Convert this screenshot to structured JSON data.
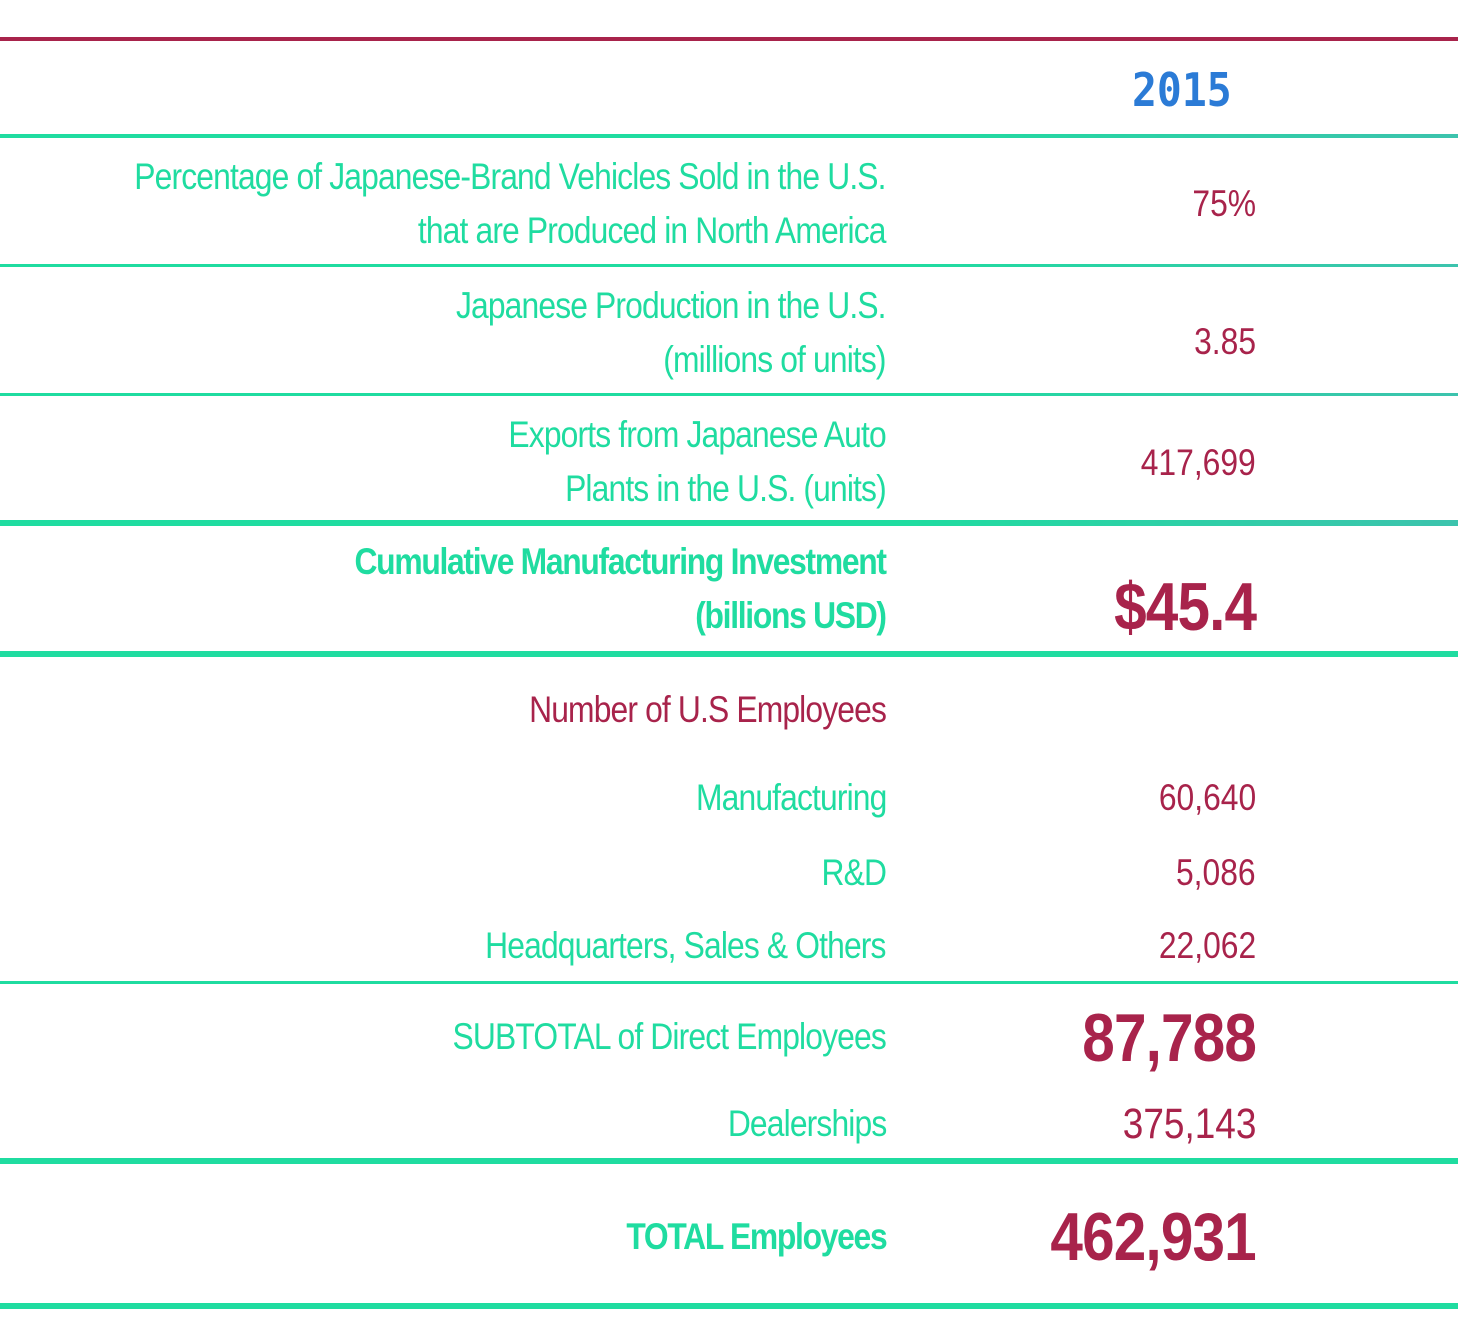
{
  "colors": {
    "label": "#1fdca0",
    "value": "#a8234b",
    "year": "#2b7bd6",
    "top_rule": "#a8234b",
    "rule": "#1fdca0",
    "rule_right": "#3cc3ad"
  },
  "header": {
    "year": "2015"
  },
  "rows": {
    "pct_japanese": {
      "label_line1": "Percentage of Japanese-Brand Vehicles Sold in the U.S.",
      "label_line2": "that are Produced in North America",
      "value": "75%"
    },
    "production": {
      "label_line1": "Japanese Production in the U.S.",
      "label_line2": "(millions of units)",
      "value": "3.85"
    },
    "exports": {
      "label_line1": "Exports from Japanese Auto",
      "label_line2": "Plants in the U.S. (units)",
      "value": "417,699"
    },
    "investment": {
      "label_line1": "Cumulative Manufacturing Investment",
      "label_line2": "(billions USD)",
      "value": "$45.4"
    },
    "employees_heading": {
      "label": "Number of U.S Employees"
    },
    "manufacturing": {
      "label": "Manufacturing",
      "value": "60,640"
    },
    "rnd": {
      "label": "R&D",
      "value": "5,086"
    },
    "hq_sales": {
      "label": "Headquarters, Sales & Others",
      "value": "22,062"
    },
    "subtotal": {
      "label": "SUBTOTAL of Direct Employees",
      "value": "87,788"
    },
    "dealerships": {
      "label": "Dealerships",
      "value": "375,143"
    },
    "total": {
      "label": "TOTAL Employees",
      "value": "462,931"
    }
  }
}
